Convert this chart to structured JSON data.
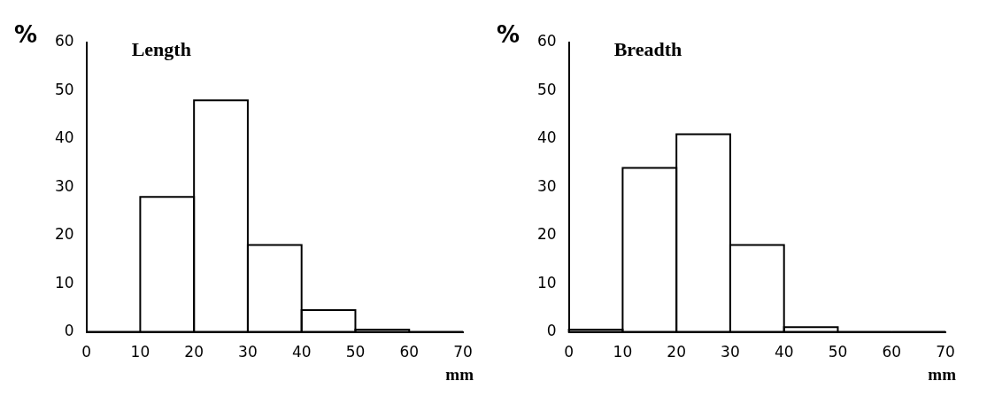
{
  "chart_data": [
    {
      "type": "histogram",
      "title": "Length",
      "xlabel": "mm",
      "ylabel": "%",
      "bins": [
        0,
        10,
        20,
        30,
        40,
        50,
        60,
        70
      ],
      "values": [
        0,
        28,
        48,
        18,
        4.5,
        0.5,
        0
      ],
      "color": "#000000",
      "xlim": [
        0,
        70
      ],
      "xticks": [
        0,
        10,
        20,
        30,
        40,
        50,
        60,
        70
      ],
      "ylim": [
        0,
        60
      ],
      "yticks": [
        0,
        10,
        20,
        30,
        40,
        50,
        60
      ]
    },
    {
      "type": "histogram",
      "title": "Breadth",
      "xlabel": "mm",
      "ylabel": "%",
      "bins": [
        0,
        10,
        20,
        30,
        40,
        50,
        60,
        70
      ],
      "values": [
        0.5,
        34,
        41,
        18,
        1,
        0,
        0
      ],
      "color": "#000000",
      "xlim": [
        0,
        70
      ],
      "xticks": [
        0,
        10,
        20,
        30,
        40,
        50,
        60,
        70
      ],
      "ylim": [
        0,
        60
      ],
      "yticks": [
        0,
        10,
        20,
        30,
        40,
        50,
        60
      ]
    }
  ]
}
